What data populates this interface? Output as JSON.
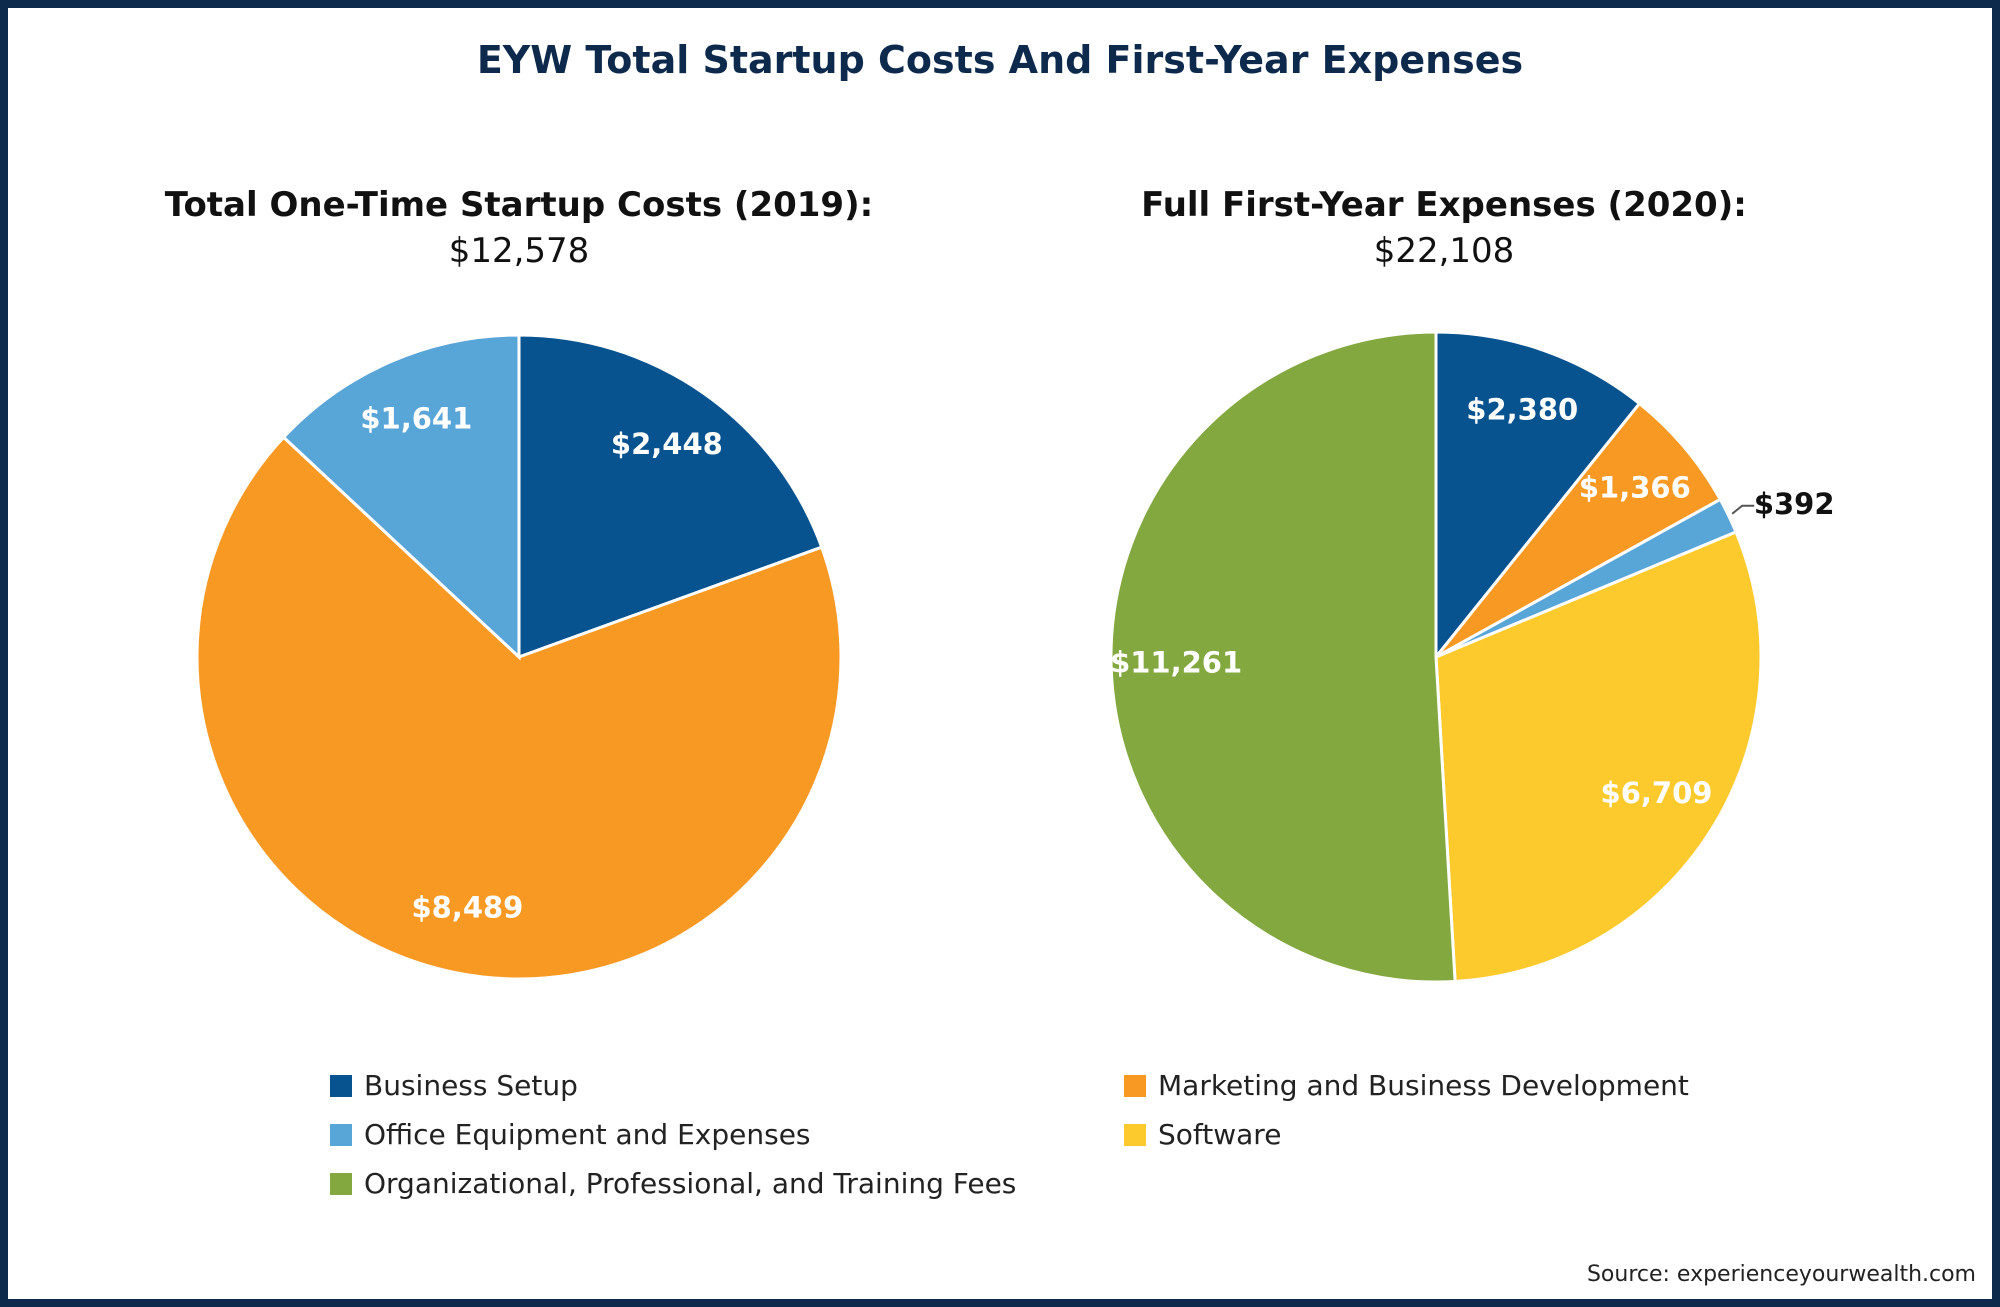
{
  "title": "EYW Total Startup Costs And First-Year Expenses",
  "source": "Source: experienceyourwealth.com",
  "colors": {
    "Business Setup": "#07538f",
    "Marketing and Business Development": "#f89923",
    "Office Equipment and Expenses": "#58a5d8",
    "Software": "#fdca2e",
    "Organizational, Professional, and Training Fees": "#83a840",
    "border": "#0d2a4d"
  },
  "legend": {
    "placement": "bottom",
    "items": [
      "Business Setup",
      "Marketing and Business Development",
      "Office Equipment and Expenses",
      "Software",
      "Organizational, Professional, and Training Fees"
    ]
  },
  "chart_data": [
    {
      "type": "pie",
      "title": "Total One-Time Startup Costs (2019):",
      "subtitle": "$12,578",
      "categories": [
        "Business Setup",
        "Marketing and Business Development",
        "Office Equipment and Expenses"
      ],
      "values": [
        2448,
        8489,
        1641
      ],
      "labels": [
        "$2,448",
        "$8,489",
        "$1,641"
      ]
    },
    {
      "type": "pie",
      "title": "Full First-Year Expenses (2020):",
      "subtitle": "$22,108",
      "categories": [
        "Business Setup",
        "Marketing and Business Development",
        "Office Equipment and Expenses",
        "Software",
        "Organizational, Professional, and Training Fees"
      ],
      "values": [
        2380,
        1366,
        392,
        6709,
        11261
      ],
      "labels": [
        "$2,380",
        "$1,366",
        "$392",
        "$6,709",
        "$11,261"
      ]
    }
  ]
}
